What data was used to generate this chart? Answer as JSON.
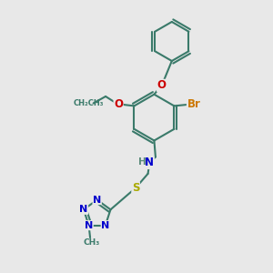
{
  "bg_color": "#e8e8e8",
  "bond_color": "#3a7a6a",
  "bond_width": 1.5,
  "atom_colors": {
    "Br": "#cc7700",
    "O": "#cc0000",
    "N": "#0000cc",
    "S": "#aaaa00",
    "H": "#5a8a7a",
    "C_label": "#3a7a6a"
  },
  "font_size": 8.5
}
